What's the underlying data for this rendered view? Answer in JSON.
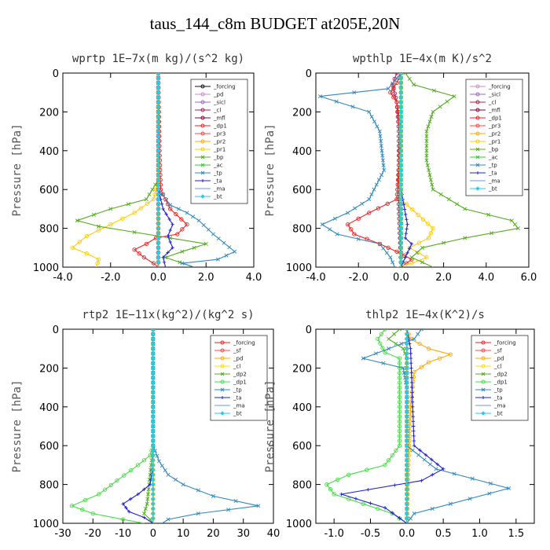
{
  "figure": {
    "title": "taus_144_c8m  BUDGET at205E,20N"
  },
  "chart_data": [
    {
      "id": "wprtp",
      "type": "line",
      "title": "wprtp   1E−7x(m kg)/(s^2 kg)",
      "ylabel": "Pressure [hPa]",
      "xlim": [
        -4.0,
        4.0
      ],
      "xticks": [
        -4.0,
        -2.0,
        0.0,
        2.0,
        4.0
      ],
      "xtick_labels": [
        "-4.0",
        "-2.0",
        "0.0",
        "2.0",
        "4.0"
      ],
      "ylim": [
        1000,
        0
      ],
      "yticks": [
        0,
        200,
        400,
        600,
        800,
        1000
      ],
      "legend": "top-right",
      "series": [
        {
          "name": "_forcing",
          "color": "#111111",
          "marker": "o",
          "x": [
            0,
            0
          ],
          "y": [
            0,
            1000
          ]
        },
        {
          "name": "_pd",
          "color": "#cc88cc",
          "marker": "o",
          "x": [
            0,
            0
          ],
          "y": [
            0,
            1000
          ]
        },
        {
          "name": "_sicl",
          "color": "#9966cc",
          "marker": "o",
          "x": [
            0,
            0
          ],
          "y": [
            0,
            1000
          ]
        },
        {
          "name": "_cl",
          "color": "#aa2255",
          "marker": "o",
          "x": [
            0,
            0
          ],
          "y": [
            0,
            1000
          ]
        },
        {
          "name": "_mfl",
          "color": "#880033",
          "marker": "o",
          "x": [
            0,
            0
          ],
          "y": [
            0,
            1000
          ]
        },
        {
          "name": "_dp1",
          "color": "#ee2222",
          "marker": "o",
          "x": [
            0,
            0.05,
            0.1,
            0.5,
            1.2,
            0.8,
            -0.1,
            -0.5,
            -1.0,
            -0.6,
            -0.2,
            0
          ],
          "y": [
            0,
            400,
            600,
            700,
            780,
            830,
            850,
            880,
            910,
            950,
            980,
            1000
          ]
        },
        {
          "name": "_pr3",
          "color": "#ff4444",
          "marker": "o",
          "x": [
            0,
            0
          ],
          "y": [
            0,
            1000
          ]
        },
        {
          "name": "_pr2",
          "color": "#ffaa00",
          "marker": "o",
          "x": [
            0,
            0
          ],
          "y": [
            0,
            1000
          ]
        },
        {
          "name": "_pr1",
          "color": "#ffcc00",
          "marker": "o",
          "x": [
            0,
            0,
            -0.2,
            -1.0,
            -2.0,
            -3.0,
            -3.6,
            -3.0,
            -2.5,
            -2.6
          ],
          "y": [
            0,
            550,
            650,
            720,
            780,
            840,
            900,
            930,
            960,
            1000
          ]
        },
        {
          "name": "_bp",
          "color": "#55aa22",
          "marker": "x",
          "x": [
            0,
            0,
            -0.5,
            -2.0,
            -3.4,
            -2.5,
            -1.0,
            0.5,
            2.0,
            1.0,
            0.3,
            1.5
          ],
          "y": [
            0,
            550,
            650,
            700,
            760,
            790,
            820,
            850,
            880,
            920,
            950,
            1000
          ]
        },
        {
          "name": "_ac",
          "color": "#33cc33",
          "marker": "x",
          "x": [
            0,
            0
          ],
          "y": [
            0,
            1000
          ]
        },
        {
          "name": "_tp",
          "color": "#3388bb",
          "marker": "x",
          "x": [
            0,
            0,
            0.5,
            1.2,
            1.7,
            2.3,
            3.2,
            2.5,
            1.0,
            1.5
          ],
          "y": [
            0,
            600,
            680,
            720,
            760,
            830,
            920,
            960,
            980,
            1000
          ]
        },
        {
          "name": "_ta",
          "color": "#2222cc",
          "marker": "+",
          "x": [
            0,
            0,
            0.2,
            0.6,
            0.4,
            0.6,
            0.2,
            0.3
          ],
          "y": [
            0,
            600,
            700,
            780,
            840,
            900,
            950,
            1000
          ]
        },
        {
          "name": "_ma",
          "color": "#6699ee",
          "marker": "-",
          "x": [
            0,
            0
          ],
          "y": [
            0,
            1000
          ]
        },
        {
          "name": "_bt",
          "color": "#22ccee",
          "marker": "d",
          "x": [
            0,
            0
          ],
          "y": [
            0,
            1000
          ]
        }
      ]
    },
    {
      "id": "wpthlp",
      "type": "line",
      "title": "wpthlp   1E−4x(m K)/s^2",
      "ylabel": "Pressure [hPa]",
      "xlim": [
        -4.0,
        6.0
      ],
      "xticks": [
        -4.0,
        -2.0,
        0.0,
        2.0,
        4.0,
        6.0
      ],
      "xtick_labels": [
        "-4.0",
        "-2.0",
        "0.0",
        "2.0",
        "4.0",
        "6.0"
      ],
      "ylim": [
        1000,
        0
      ],
      "yticks": [
        0,
        200,
        400,
        600,
        800,
        1000
      ],
      "legend": "top-right",
      "series": [
        {
          "name": "_forcing",
          "color": "#cc88cc",
          "marker": "o",
          "x": [
            0,
            0
          ],
          "y": [
            0,
            1000
          ]
        },
        {
          "name": "_sicl",
          "color": "#9966cc",
          "marker": "o",
          "x": [
            0,
            0
          ],
          "y": [
            0,
            1000
          ]
        },
        {
          "name": "_cl",
          "color": "#aa2255",
          "marker": "o",
          "x": [
            -0.2,
            -0.4,
            -0.2,
            -0.1,
            -0.1,
            0
          ],
          "y": [
            0,
            60,
            150,
            300,
            700,
            1000
          ]
        },
        {
          "name": "_mfl",
          "color": "#880033",
          "marker": "o",
          "x": [
            0,
            0
          ],
          "y": [
            0,
            1000
          ]
        },
        {
          "name": "_dp1",
          "color": "#ee2222",
          "marker": "o",
          "x": [
            0,
            -0.2,
            -0.5,
            -0.2,
            0,
            -0.2,
            -1.5,
            -2.5,
            -2.2,
            -1.0,
            -0.2,
            0.5,
            0
          ],
          "y": [
            0,
            50,
            100,
            150,
            300,
            650,
            720,
            780,
            830,
            880,
            920,
            960,
            1000
          ]
        },
        {
          "name": "_pr3",
          "color": "#ff4444",
          "marker": "o",
          "x": [
            0,
            0
          ],
          "y": [
            0,
            1000
          ]
        },
        {
          "name": "_pr2",
          "color": "#ffaa00",
          "marker": "o",
          "x": [
            0,
            0
          ],
          "y": [
            0,
            1000
          ]
        },
        {
          "name": "_pr1",
          "color": "#ffcc00",
          "marker": "o",
          "x": [
            0,
            0,
            0.8,
            1.5,
            1.3,
            0.4,
            1.2,
            0.5,
            -0.2
          ],
          "y": [
            0,
            650,
            730,
            800,
            850,
            900,
            950,
            980,
            1000
          ]
        },
        {
          "name": "_bp",
          "color": "#55aa22",
          "marker": "x",
          "x": [
            0.2,
            0.6,
            2.5,
            1.5,
            1.2,
            1.2,
            1.5,
            3.0,
            5.2,
            5.5,
            3.0,
            1.0,
            0.5,
            1.5
          ],
          "y": [
            0,
            60,
            120,
            200,
            300,
            450,
            600,
            700,
            760,
            800,
            850,
            900,
            950,
            1000
          ]
        },
        {
          "name": "_ac",
          "color": "#33cc33",
          "marker": "x",
          "x": [
            0,
            0
          ],
          "y": [
            0,
            1000
          ]
        },
        {
          "name": "_tp",
          "color": "#3388bb",
          "marker": "x",
          "x": [
            0,
            -0.6,
            -3.8,
            -1.5,
            -1.0,
            -0.8,
            -1.5,
            -2.5,
            -3.7,
            -3.0,
            -1.0,
            -0.5,
            -0.3
          ],
          "y": [
            0,
            80,
            120,
            200,
            300,
            500,
            650,
            720,
            780,
            830,
            880,
            950,
            1000
          ]
        },
        {
          "name": "_ta",
          "color": "#2222cc",
          "marker": "+",
          "x": [
            0,
            0,
            0.3,
            0.2,
            0.5,
            0.2,
            0
          ],
          "y": [
            0,
            600,
            780,
            850,
            880,
            950,
            1000
          ]
        },
        {
          "name": "_ma",
          "color": "#6699ee",
          "marker": "-",
          "x": [
            0,
            0
          ],
          "y": [
            0,
            1000
          ]
        },
        {
          "name": "_bt",
          "color": "#22ccee",
          "marker": "d",
          "x": [
            0,
            0
          ],
          "y": [
            0,
            1000
          ]
        }
      ]
    },
    {
      "id": "rtp2",
      "type": "line",
      "title": "rtp2   1E−11x(kg^2)/(kg^2 s)",
      "ylabel": "Pressure [hPa]",
      "xlim": [
        -30,
        40
      ],
      "xticks": [
        -30,
        -20,
        -10,
        0,
        10,
        20,
        30,
        40
      ],
      "xtick_labels": [
        "-30",
        "-20",
        "-10",
        "0",
        "10",
        "20",
        "30",
        "40"
      ],
      "ylim": [
        1000,
        0
      ],
      "yticks": [
        0,
        200,
        400,
        600,
        800,
        1000
      ],
      "legend": "top-right",
      "series": [
        {
          "name": "_forcing",
          "color": "#ee2222",
          "marker": "o",
          "x": [
            0,
            0
          ],
          "y": [
            0,
            1000
          ]
        },
        {
          "name": "_sf",
          "color": "#ff4444",
          "marker": "o",
          "x": [
            0,
            0
          ],
          "y": [
            0,
            1000
          ]
        },
        {
          "name": "_pd",
          "color": "#ffaa00",
          "marker": "o",
          "x": [
            0,
            0
          ],
          "y": [
            0,
            1000
          ]
        },
        {
          "name": "_cl",
          "color": "#ffdd00",
          "marker": "o",
          "x": [
            0,
            0
          ],
          "y": [
            0,
            1000
          ]
        },
        {
          "name": "_dp2",
          "color": "#55aa22",
          "marker": "x",
          "x": [
            0,
            0,
            -2,
            -3,
            -1,
            0
          ],
          "y": [
            0,
            600,
            900,
            950,
            980,
            1000
          ]
        },
        {
          "name": "_dp1",
          "color": "#44dd44",
          "marker": "o",
          "x": [
            0,
            0,
            -1,
            -5,
            -12,
            -18,
            -27,
            -20,
            -10,
            -3
          ],
          "y": [
            0,
            600,
            650,
            700,
            780,
            850,
            910,
            950,
            980,
            1000
          ]
        },
        {
          "name": "_tp",
          "color": "#3388bb",
          "marker": "x",
          "x": [
            0,
            0,
            2,
            5,
            10,
            20,
            35,
            15,
            5,
            3
          ],
          "y": [
            0,
            600,
            680,
            750,
            800,
            860,
            910,
            950,
            980,
            1000
          ]
        },
        {
          "name": "_ta",
          "color": "#2222cc",
          "marker": "+",
          "x": [
            0,
            0,
            -1,
            -5,
            -10,
            -8,
            -3,
            0
          ],
          "y": [
            0,
            700,
            800,
            850,
            900,
            940,
            970,
            1000
          ]
        },
        {
          "name": "_ma",
          "color": "#6699ee",
          "marker": "-",
          "x": [
            0,
            0
          ],
          "y": [
            0,
            1000
          ]
        },
        {
          "name": "_bt",
          "color": "#22ccee",
          "marker": "d",
          "x": [
            0,
            0
          ],
          "y": [
            0,
            1000
          ]
        }
      ]
    },
    {
      "id": "thlp2",
      "type": "line",
      "title": "thlp2   1E−4x(K^2)/s",
      "ylabel": "Pressure [hPa]",
      "xlim": [
        -1.25,
        1.75
      ],
      "xticks": [
        -1.0,
        -0.5,
        0.0,
        0.5,
        1.0,
        1.5
      ],
      "xtick_labels": [
        "-1.0",
        "-0.5",
        "0.0",
        "0.5",
        "1.0",
        "1.5"
      ],
      "ylim": [
        1000,
        0
      ],
      "yticks": [
        0,
        200,
        400,
        600,
        800,
        1000
      ],
      "legend": "top-right",
      "series": [
        {
          "name": "_forcing",
          "color": "#ee2222",
          "marker": "o",
          "x": [
            0,
            0
          ],
          "y": [
            0,
            1000
          ]
        },
        {
          "name": "_sf",
          "color": "#ff4444",
          "marker": "o",
          "x": [
            0,
            0
          ],
          "y": [
            0,
            1000
          ]
        },
        {
          "name": "_pd",
          "color": "#ffaa00",
          "marker": "o",
          "x": [
            0,
            0.05,
            0.3,
            0.6,
            0.3,
            0.1,
            0.05,
            0.02,
            0
          ],
          "y": [
            0,
            50,
            100,
            130,
            170,
            220,
            400,
            700,
            1000
          ]
        },
        {
          "name": "_cl",
          "color": "#ffdd00",
          "marker": "o",
          "x": [
            0,
            0
          ],
          "y": [
            0,
            1000
          ]
        },
        {
          "name": "_dp2",
          "color": "#55aa22",
          "marker": "x",
          "x": [
            -0.1,
            -0.25,
            -0.05,
            0,
            0
          ],
          "y": [
            0,
            50,
            100,
            150,
            1000
          ]
        },
        {
          "name": "_dp1",
          "color": "#44dd44",
          "marker": "o",
          "x": [
            -0.3,
            -0.4,
            -0.3,
            -0.1,
            -0.1,
            -0.3,
            -0.8,
            -1.1,
            -1.0,
            -0.6,
            -0.2,
            0
          ],
          "y": [
            0,
            50,
            120,
            150,
            600,
            700,
            750,
            800,
            850,
            900,
            950,
            1000
          ]
        },
        {
          "name": "_tp",
          "color": "#3388bb",
          "marker": "x",
          "x": [
            0.2,
            0.1,
            -0.6,
            -0.05,
            0,
            0,
            0.4,
            1.4,
            0.6,
            0.1,
            0
          ],
          "y": [
            0,
            50,
            150,
            200,
            300,
            600,
            720,
            820,
            900,
            950,
            1000
          ]
        },
        {
          "name": "_ta",
          "color": "#2222cc",
          "marker": "+",
          "x": [
            0,
            0.05,
            0.1,
            0.5,
            0.2,
            -0.9,
            -0.3,
            0
          ],
          "y": [
            0,
            100,
            600,
            720,
            780,
            850,
            920,
            1000
          ]
        },
        {
          "name": "_ma",
          "color": "#6699ee",
          "marker": "-",
          "x": [
            0,
            0
          ],
          "y": [
            0,
            1000
          ]
        },
        {
          "name": "_bt",
          "color": "#22ccee",
          "marker": "d",
          "x": [
            0,
            0
          ],
          "y": [
            0,
            1000
          ]
        }
      ]
    }
  ]
}
